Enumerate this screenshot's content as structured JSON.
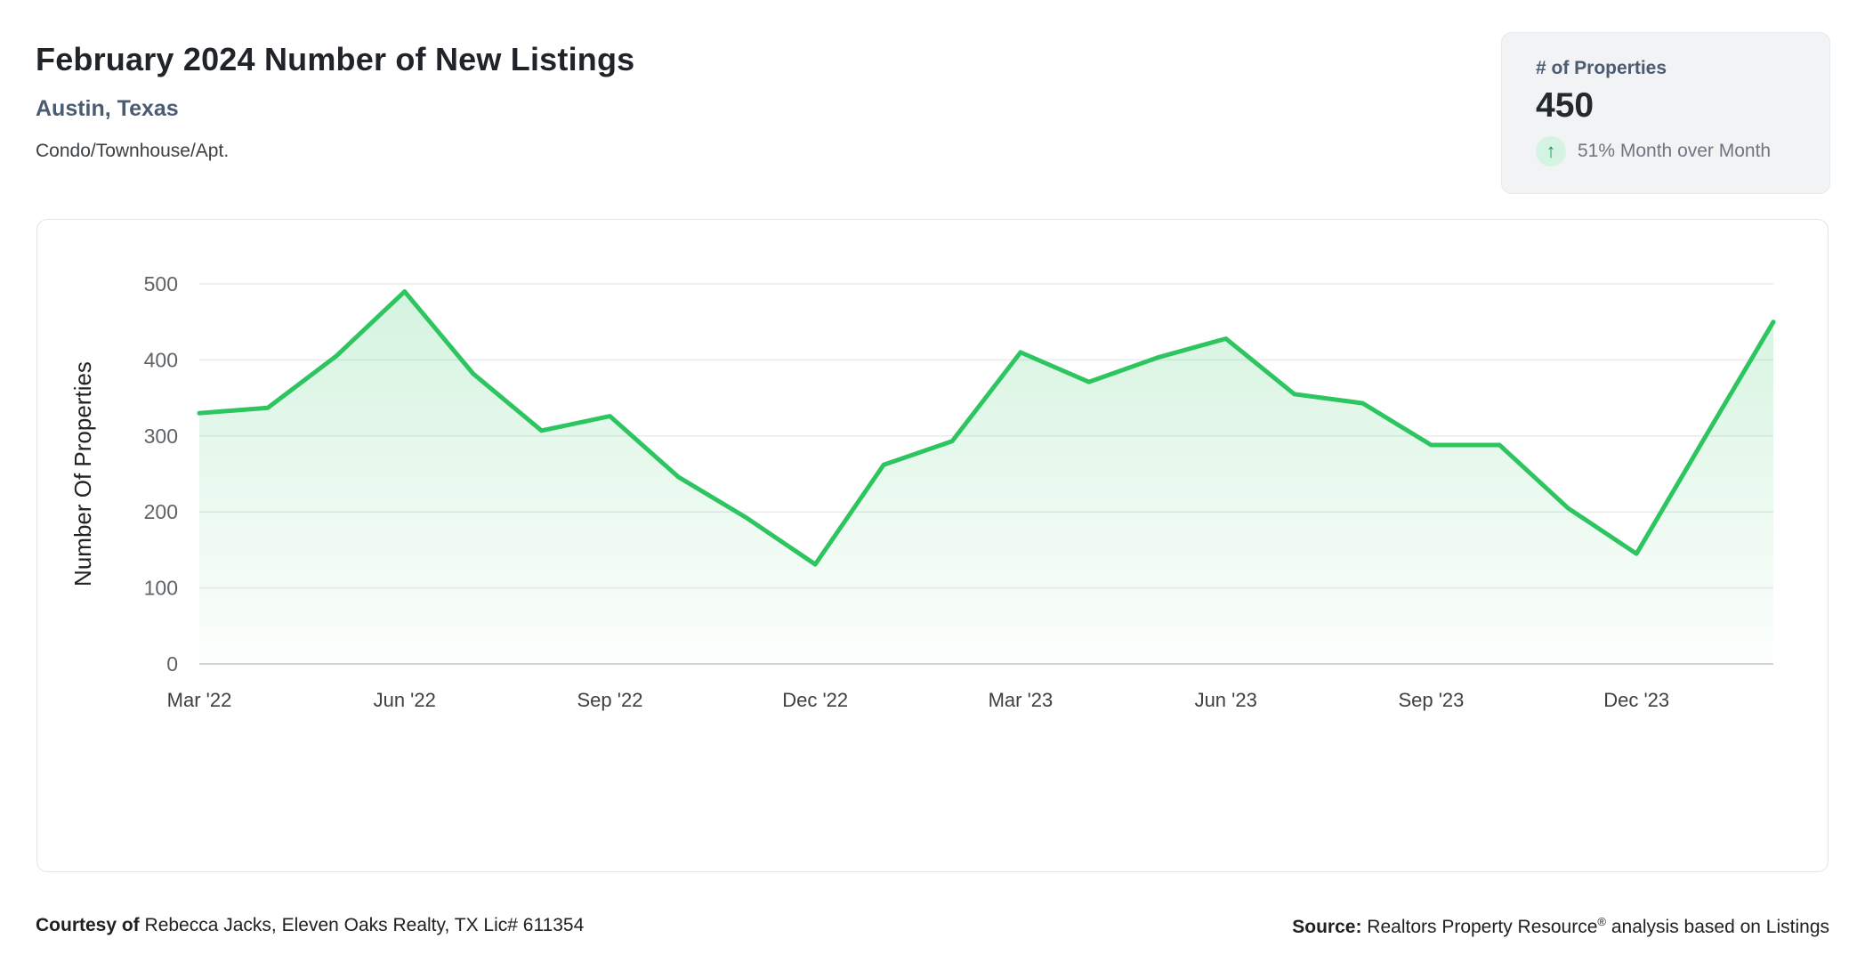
{
  "header": {
    "title": "February 2024 Number of New Listings",
    "location": "Austin, Texas",
    "property_type": "Condo/Townhouse/Apt."
  },
  "stat_card": {
    "label": "# of Properties",
    "value": "450",
    "trend": {
      "icon": "up-arrow-icon",
      "glyph": "↑",
      "text": "51% Month over Month",
      "badge_bg": "#d5f3e2",
      "arrow_color": "#1a9a52"
    }
  },
  "chart_data": {
    "type": "area",
    "title": "February 2024 Number of New Listings",
    "x": [
      "Mar '22",
      "Apr '22",
      "May '22",
      "Jun '22",
      "Jul '22",
      "Aug '22",
      "Sep '22",
      "Oct '22",
      "Nov '22",
      "Dec '22",
      "Jan '23",
      "Feb '23",
      "Mar '23",
      "Apr '23",
      "May '23",
      "Jun '23",
      "Jul '23",
      "Aug '23",
      "Sep '23",
      "Oct '23",
      "Nov '23",
      "Dec '23",
      "Jan '24",
      "Feb '24"
    ],
    "values": [
      330,
      337,
      405,
      490,
      382,
      307,
      326,
      246,
      192,
      131,
      262,
      293,
      410,
      371,
      403,
      428,
      355,
      343,
      288,
      288,
      205,
      145,
      298,
      450
    ],
    "xtick_labels": [
      "Mar '22",
      "Jun '22",
      "Sep '22",
      "Dec '22",
      "Mar '23",
      "Jun '23",
      "Sep '23",
      "Dec '23"
    ],
    "xtick_every": 3,
    "xlabel": "",
    "ylabel": "Number Of Properties",
    "ylim": [
      0,
      500
    ],
    "yticks": [
      0,
      100,
      200,
      300,
      400,
      500
    ],
    "grid": true,
    "legend": "none",
    "line_color": "#2dc55f",
    "fill_top": "rgba(45,197,95,0.20)",
    "fill_bottom": "rgba(45,197,95,0.01)"
  },
  "footer": {
    "courtesy_label": "Courtesy of",
    "courtesy_text": "Rebecca Jacks, Eleven Oaks Realty, TX Lic# 611354",
    "source_label": "Source:",
    "source_name": "Realtors Property Resource",
    "source_reg_mark": "®",
    "source_suffix": "analysis based on Listings"
  },
  "colors": {
    "accent_green": "#2dc55f",
    "heading_slate": "#4a5b72",
    "grid_line": "#e9ebee",
    "axis_line": "#d2d6da"
  }
}
